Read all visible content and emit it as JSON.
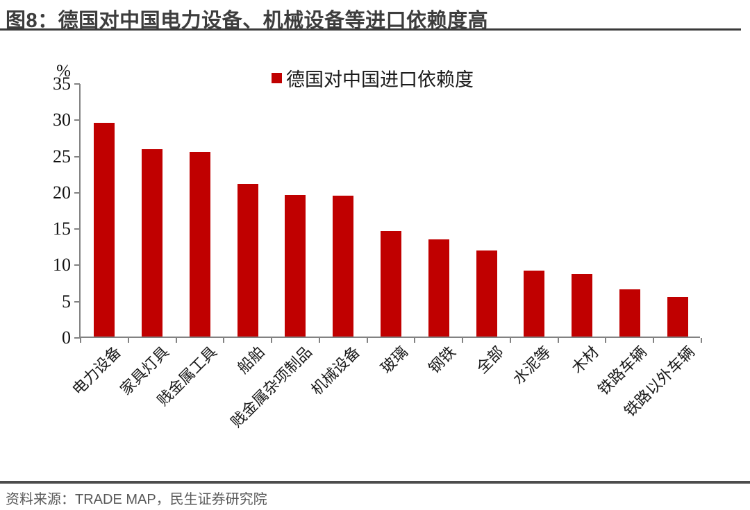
{
  "header": {
    "title": "图8：德国对中国电力设备、机械设备等进口依赖度高"
  },
  "footer": {
    "source": "资料来源：TRADE MAP，民生证券研究院"
  },
  "colors": {
    "bar": "#C00000",
    "axis": "#828282",
    "title_text": "#3D3D3D",
    "source_text": "#595959",
    "label_text": "#1A1A1A"
  },
  "chart_data": {
    "type": "bar",
    "title": "图8：德国对中国电力设备、机械设备等进口依赖度高",
    "legend": "德国对中国进口依赖度",
    "legend_position": "top-center",
    "unit_label": "%",
    "xlabel": "",
    "ylabel": "%",
    "ylim": [
      0,
      35
    ],
    "yticks": [
      0,
      5,
      10,
      15,
      20,
      25,
      30,
      35
    ],
    "grid": false,
    "bar_color": "#C00000",
    "categories": [
      "电力设备",
      "家具灯具",
      "贱金属工具",
      "船舶",
      "贱金属杂项制品",
      "机械设备",
      "玻璃",
      "钢铁",
      "全部",
      "水泥等",
      "木材",
      "铁路车辆",
      "铁路以外车辆"
    ],
    "values": [
      29.5,
      25.8,
      25.4,
      21.0,
      19.5,
      19.4,
      14.5,
      13.4,
      11.9,
      9.1,
      8.6,
      6.5,
      5.5
    ]
  }
}
